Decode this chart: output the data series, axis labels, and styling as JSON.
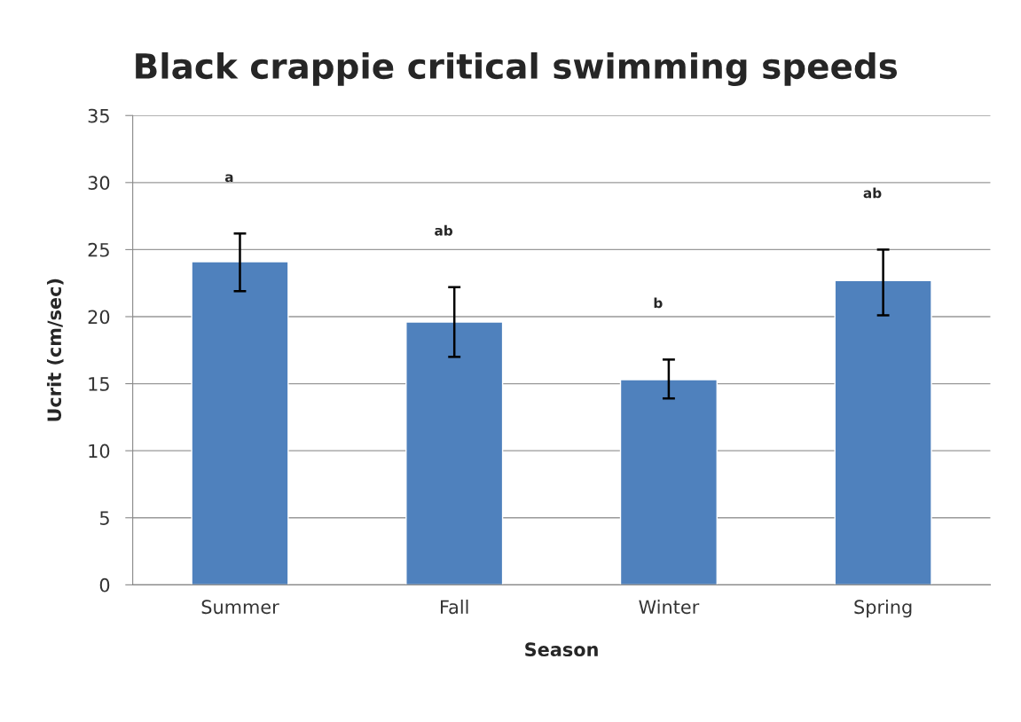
{
  "chart_data": {
    "type": "bar",
    "title": "Black crappie critical swimming speeds",
    "xlabel": "Season",
    "ylabel": "Ucrit (cm/sec)",
    "categories": [
      "Summer",
      "Fall",
      "Winter",
      "Spring"
    ],
    "values": [
      24.1,
      19.6,
      15.3,
      22.7
    ],
    "errors": [
      [
        21.9,
        26.2
      ],
      [
        17.0,
        22.2
      ],
      [
        13.9,
        16.8
      ],
      [
        20.1,
        25.0
      ]
    ],
    "color": "#4f81bd",
    "ylim": [
      0,
      35
    ],
    "yticks": [
      0,
      5,
      10,
      15,
      20,
      25,
      30,
      35
    ],
    "grid": "y",
    "annotations": [
      "a",
      "ab",
      "b",
      "ab"
    ]
  }
}
